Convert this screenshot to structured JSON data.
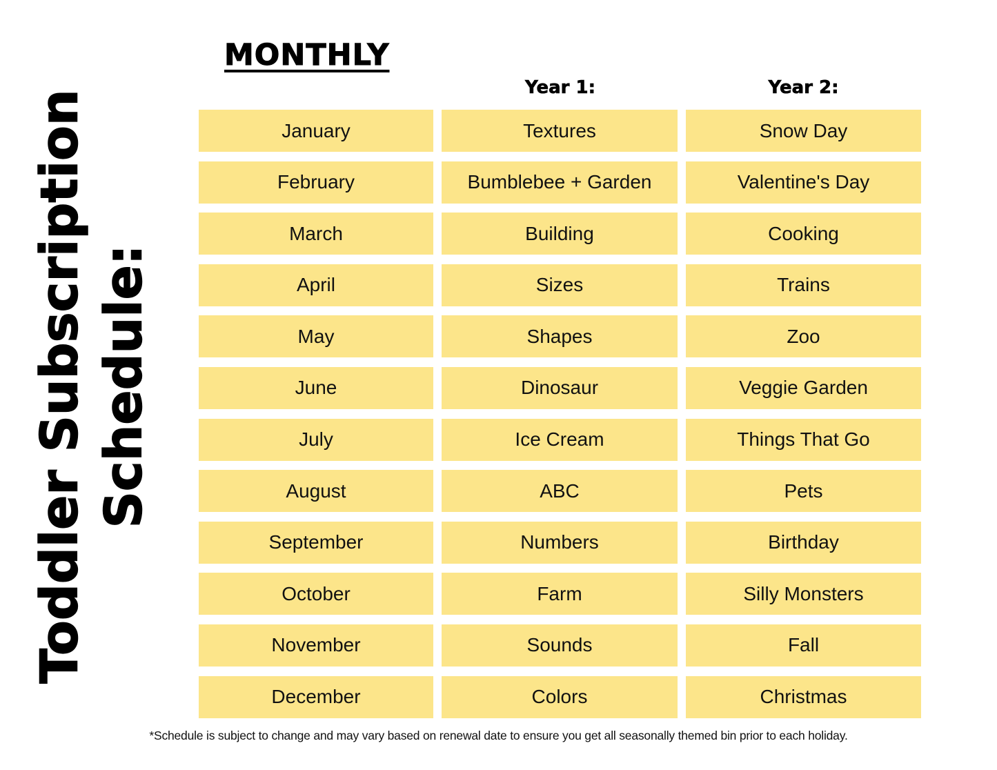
{
  "page": {
    "background": "#ffffff",
    "accent_color": "#FCE58A",
    "text_color": "#111111",
    "vertical_title": {
      "line1": "Toddler Subscription",
      "line2": "Schedule:"
    },
    "heading": "MONTHLY",
    "column_headers": {
      "year1": "Year 1:",
      "year2": "Year 2:"
    },
    "footnote": "*Schedule is subject to change and may vary based on renewal date to ensure you get all seasonally themed bin prior to each holiday."
  },
  "schedule": {
    "months": [
      "January",
      "February",
      "March",
      "April",
      "May",
      "June",
      "July",
      "August",
      "September",
      "October",
      "November",
      "December"
    ],
    "year1": [
      "Textures",
      "Bumblebee + Garden",
      "Building",
      "Sizes",
      "Shapes",
      "Dinosaur",
      "Ice Cream",
      "ABC",
      "Numbers",
      "Farm",
      "Sounds",
      "Colors"
    ],
    "year2": [
      "Snow Day",
      "Valentine's Day",
      "Cooking",
      "Trains",
      "Zoo",
      "Veggie Garden",
      "Things That Go",
      "Pets",
      "Birthday",
      "Silly Monsters",
      "Fall",
      "Christmas"
    ]
  }
}
